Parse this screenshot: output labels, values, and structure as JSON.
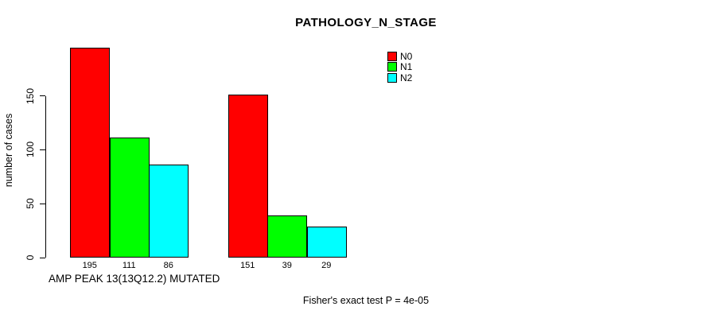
{
  "chart_data": {
    "type": "bar",
    "title": "PATHOLOGY_N_STAGE",
    "ylabel": "number of cases",
    "xlabel": "AMP PEAK 13(13Q12.2) MUTATED",
    "caption": "Fisher's exact test P = 4e-05",
    "ylim": [
      0,
      200
    ],
    "yticks": [
      0,
      50,
      100,
      150
    ],
    "grid": false,
    "legend_position": "top-right",
    "categories": [
      "AMP PEAK 13(13Q12.2) MUTATED",
      ""
    ],
    "series": [
      {
        "name": "N0",
        "color": "#ff0000",
        "values": [
          195,
          151
        ]
      },
      {
        "name": "N1",
        "color": "#00ff00",
        "values": [
          111,
          39
        ]
      },
      {
        "name": "N2",
        "color": "#00ffff",
        "values": [
          86,
          29
        ]
      }
    ],
    "bar_value_labels": [
      [
        195,
        111,
        86
      ],
      [
        151,
        39,
        29
      ]
    ],
    "axis_color": "#000000",
    "text_color": "#000000",
    "background_color": "#ffffff"
  }
}
